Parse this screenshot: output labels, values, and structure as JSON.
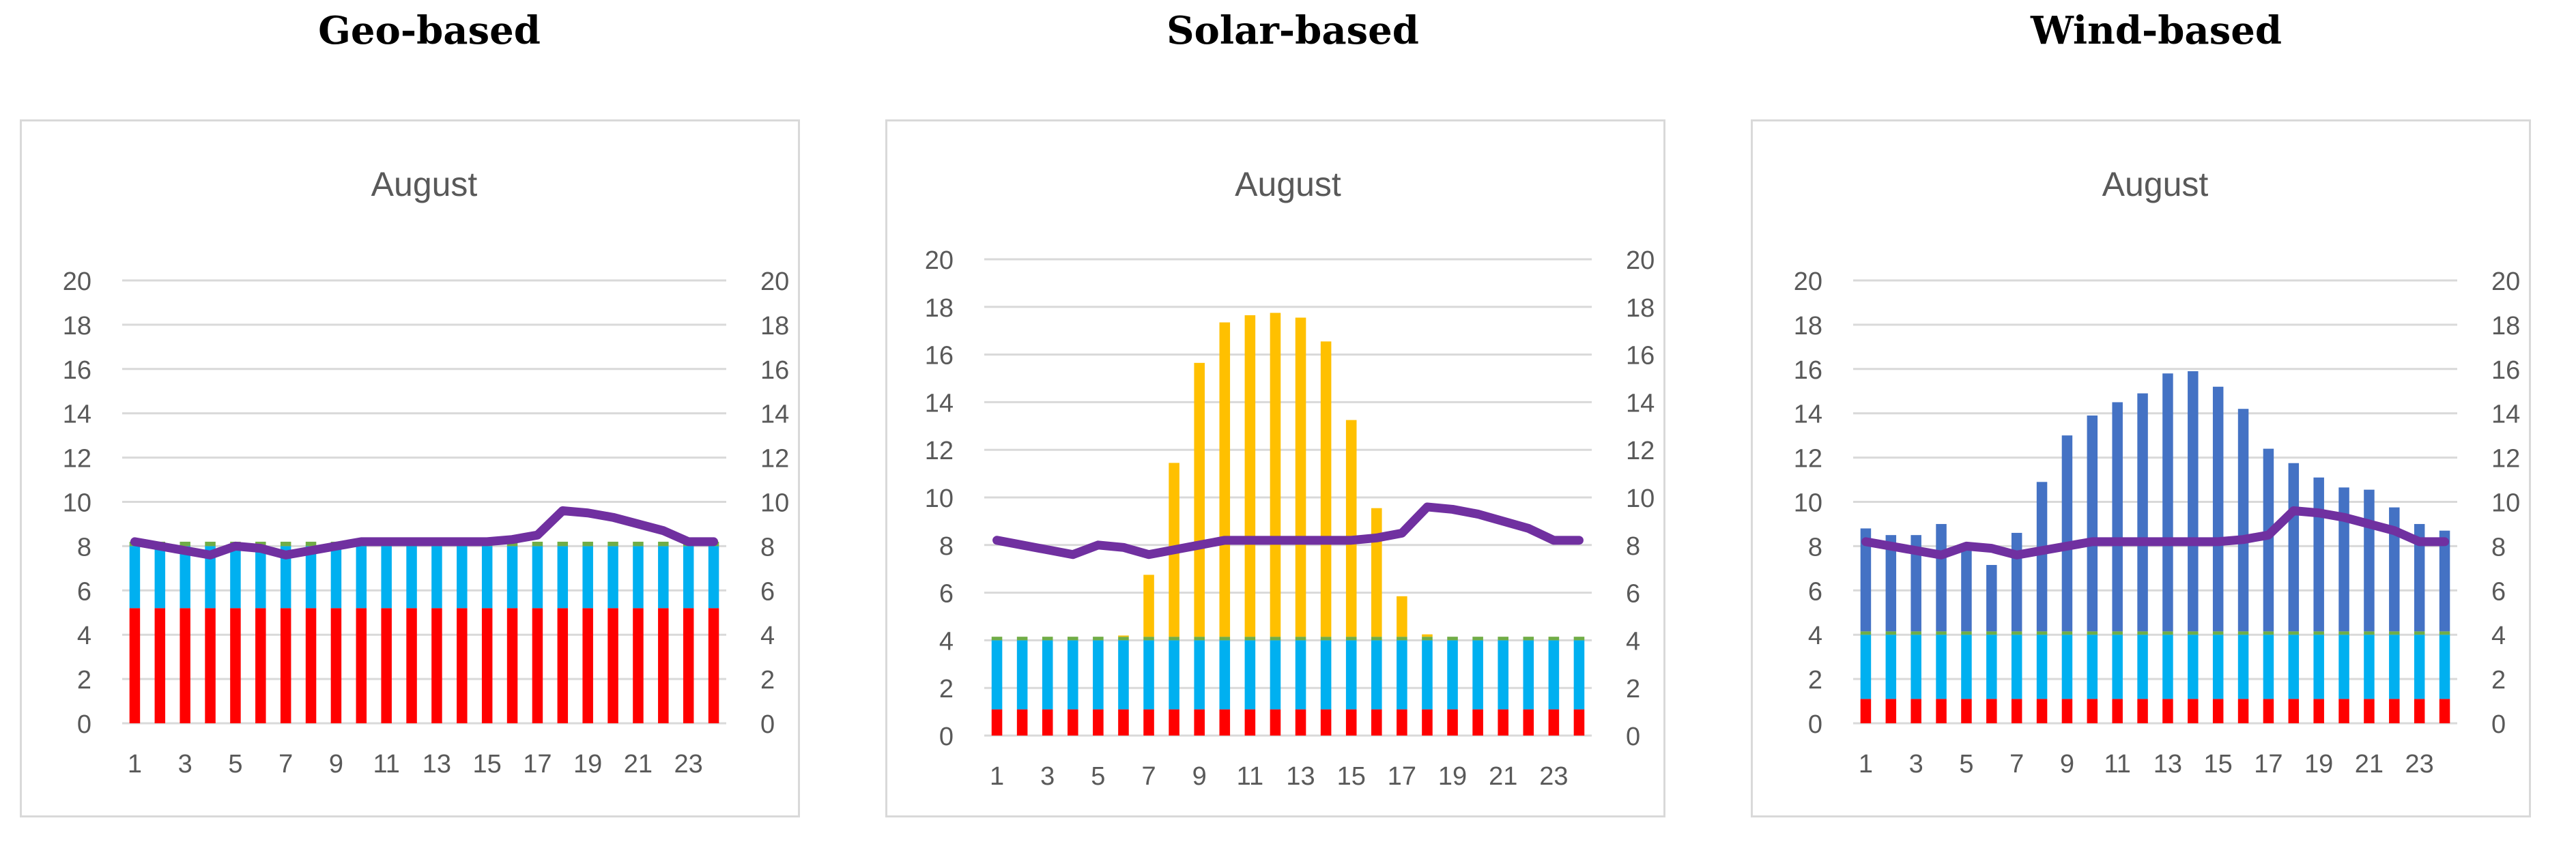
{
  "colors": {
    "red": "#ff0000",
    "cyan": "#00b0f0",
    "green": "#70ad47",
    "yellow": "#ffc000",
    "blue": "#4472c4",
    "purple": "#7030a0",
    "grid": "#d9d9d9",
    "axis_text": "#595959",
    "frame": "#d9d9d9"
  },
  "chart_data": [
    {
      "panel_title": "Geo-based",
      "title": "August",
      "type": "bar",
      "stacked": true,
      "categories": [
        1,
        2,
        3,
        4,
        5,
        6,
        7,
        8,
        9,
        10,
        11,
        12,
        13,
        14,
        15,
        16,
        17,
        18,
        19,
        20,
        21,
        22,
        23,
        24
      ],
      "x_tick_labels": [
        "1",
        "3",
        "5",
        "7",
        "9",
        "11",
        "13",
        "15",
        "17",
        "19",
        "21",
        "23"
      ],
      "ylim": [
        0,
        20
      ],
      "y_ticks": [
        0,
        2,
        4,
        6,
        8,
        10,
        12,
        14,
        16,
        18,
        20
      ],
      "secondary_ylim": [
        0,
        20
      ],
      "grid": true,
      "series": [
        {
          "name": "red",
          "color_key": "red",
          "values": [
            5.2,
            5.2,
            5.2,
            5.2,
            5.2,
            5.2,
            5.2,
            5.2,
            5.2,
            5.2,
            5.2,
            5.2,
            5.2,
            5.2,
            5.2,
            5.2,
            5.2,
            5.2,
            5.2,
            5.2,
            5.2,
            5.2,
            5.2,
            5.2
          ]
        },
        {
          "name": "cyan",
          "color_key": "cyan",
          "values": [
            2.8,
            2.8,
            2.8,
            2.8,
            2.8,
            2.8,
            2.8,
            2.8,
            2.8,
            2.8,
            2.8,
            2.8,
            2.8,
            2.8,
            2.8,
            2.8,
            2.8,
            2.8,
            2.8,
            2.8,
            2.8,
            2.8,
            2.8,
            2.8
          ]
        },
        {
          "name": "green",
          "color_key": "green",
          "values": [
            0.2,
            0.2,
            0.2,
            0.2,
            0.2,
            0.2,
            0.2,
            0.2,
            0.2,
            0.2,
            0.2,
            0.2,
            0.2,
            0.2,
            0.2,
            0.2,
            0.2,
            0.2,
            0.2,
            0.2,
            0.2,
            0.2,
            0.2,
            0.2
          ]
        }
      ],
      "line": {
        "name": "purple",
        "color_key": "purple",
        "values": [
          8.2,
          8.0,
          7.8,
          7.6,
          8.0,
          7.9,
          7.6,
          7.8,
          8.0,
          8.2,
          8.2,
          8.2,
          8.2,
          8.2,
          8.2,
          8.3,
          8.5,
          9.6,
          9.5,
          9.3,
          9.0,
          8.7,
          8.2,
          8.2
        ]
      }
    },
    {
      "panel_title": "Solar-based",
      "title": "August",
      "type": "bar",
      "stacked": true,
      "categories": [
        1,
        2,
        3,
        4,
        5,
        6,
        7,
        8,
        9,
        10,
        11,
        12,
        13,
        14,
        15,
        16,
        17,
        18,
        19,
        20,
        21,
        22,
        23,
        24
      ],
      "x_tick_labels": [
        "1",
        "3",
        "5",
        "7",
        "9",
        "11",
        "13",
        "15",
        "17",
        "19",
        "21",
        "23"
      ],
      "ylim": [
        0,
        20
      ],
      "y_ticks": [
        0,
        2,
        4,
        6,
        8,
        10,
        12,
        14,
        16,
        18,
        20
      ],
      "secondary_ylim": [
        0,
        20
      ],
      "grid": true,
      "series": [
        {
          "name": "red",
          "color_key": "red",
          "values": [
            1.1,
            1.1,
            1.1,
            1.1,
            1.1,
            1.1,
            1.1,
            1.1,
            1.1,
            1.1,
            1.1,
            1.1,
            1.1,
            1.1,
            1.1,
            1.1,
            1.1,
            1.1,
            1.1,
            1.1,
            1.1,
            1.1,
            1.1,
            1.1
          ]
        },
        {
          "name": "cyan",
          "color_key": "cyan",
          "values": [
            2.9,
            2.9,
            2.9,
            2.9,
            2.9,
            2.9,
            2.9,
            2.9,
            2.9,
            2.9,
            2.9,
            2.9,
            2.9,
            2.9,
            2.9,
            2.9,
            2.9,
            2.9,
            2.9,
            2.9,
            2.9,
            2.9,
            2.9,
            2.9
          ]
        },
        {
          "name": "green",
          "color_key": "green",
          "values": [
            0.15,
            0.15,
            0.15,
            0.15,
            0.15,
            0.15,
            0.15,
            0.15,
            0.15,
            0.15,
            0.15,
            0.15,
            0.15,
            0.15,
            0.15,
            0.15,
            0.15,
            0.15,
            0.15,
            0.15,
            0.15,
            0.15,
            0.15,
            0.15
          ]
        },
        {
          "name": "yellow",
          "color_key": "yellow",
          "values": [
            0,
            0,
            0,
            0,
            0,
            0.05,
            2.6,
            7.3,
            11.5,
            13.2,
            13.5,
            13.6,
            13.4,
            12.4,
            9.1,
            5.4,
            1.7,
            0.1,
            0,
            0,
            0,
            0,
            0,
            0
          ]
        }
      ],
      "line": {
        "name": "purple",
        "color_key": "purple",
        "values": [
          8.2,
          8.0,
          7.8,
          7.6,
          8.0,
          7.9,
          7.6,
          7.8,
          8.0,
          8.2,
          8.2,
          8.2,
          8.2,
          8.2,
          8.2,
          8.3,
          8.5,
          9.6,
          9.5,
          9.3,
          9.0,
          8.7,
          8.2,
          8.2
        ]
      }
    },
    {
      "panel_title": "Wind-based",
      "title": "August",
      "type": "bar",
      "stacked": true,
      "categories": [
        1,
        2,
        3,
        4,
        5,
        6,
        7,
        8,
        9,
        10,
        11,
        12,
        13,
        14,
        15,
        16,
        17,
        18,
        19,
        20,
        21,
        22,
        23,
        24
      ],
      "x_tick_labels": [
        "1",
        "3",
        "5",
        "7",
        "9",
        "11",
        "13",
        "15",
        "17",
        "19",
        "21",
        "23"
      ],
      "ylim": [
        0,
        20
      ],
      "y_ticks": [
        0,
        2,
        4,
        6,
        8,
        10,
        12,
        14,
        16,
        18,
        20
      ],
      "secondary_ylim": [
        0,
        20
      ],
      "grid": true,
      "series": [
        {
          "name": "red",
          "color_key": "red",
          "values": [
            1.1,
            1.1,
            1.1,
            1.1,
            1.1,
            1.1,
            1.1,
            1.1,
            1.1,
            1.1,
            1.1,
            1.1,
            1.1,
            1.1,
            1.1,
            1.1,
            1.1,
            1.1,
            1.1,
            1.1,
            1.1,
            1.1,
            1.1,
            1.1
          ]
        },
        {
          "name": "cyan",
          "color_key": "cyan",
          "values": [
            2.9,
            2.9,
            2.9,
            2.9,
            2.9,
            2.9,
            2.9,
            2.9,
            2.9,
            2.9,
            2.9,
            2.9,
            2.9,
            2.9,
            2.9,
            2.9,
            2.9,
            2.9,
            2.9,
            2.9,
            2.9,
            2.9,
            2.9,
            2.9
          ]
        },
        {
          "name": "green",
          "color_key": "green",
          "values": [
            0.15,
            0.15,
            0.15,
            0.15,
            0.15,
            0.15,
            0.15,
            0.15,
            0.15,
            0.15,
            0.15,
            0.15,
            0.15,
            0.15,
            0.15,
            0.15,
            0.15,
            0.15,
            0.15,
            0.15,
            0.15,
            0.15,
            0.15,
            0.15
          ]
        },
        {
          "name": "blue",
          "color_key": "blue",
          "values": [
            4.65,
            4.35,
            4.35,
            4.85,
            3.7,
            3.0,
            4.45,
            6.75,
            8.85,
            9.75,
            10.35,
            10.75,
            11.65,
            11.75,
            11.05,
            10.05,
            8.25,
            7.6,
            6.95,
            6.5,
            6.4,
            5.6,
            4.85,
            4.55
          ]
        }
      ],
      "line": {
        "name": "purple",
        "color_key": "purple",
        "values": [
          8.2,
          8.0,
          7.8,
          7.6,
          8.0,
          7.9,
          7.6,
          7.8,
          8.0,
          8.2,
          8.2,
          8.2,
          8.2,
          8.2,
          8.2,
          8.3,
          8.5,
          9.6,
          9.5,
          9.3,
          9.0,
          8.7,
          8.2,
          8.2
        ]
      }
    }
  ]
}
